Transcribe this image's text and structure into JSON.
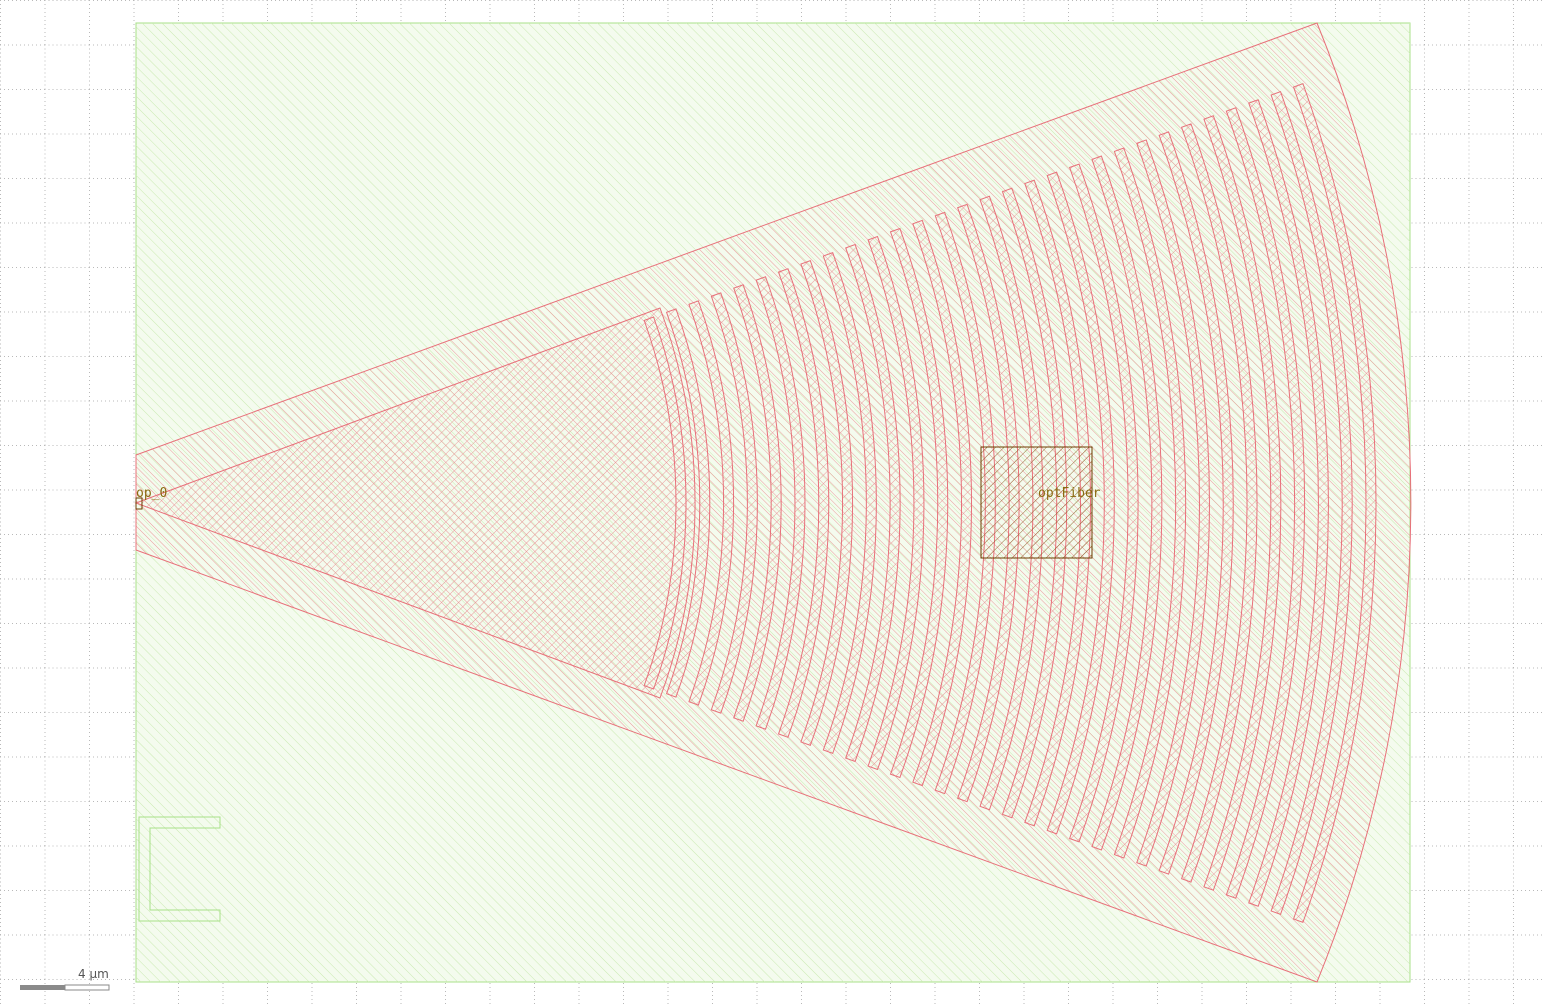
{
  "canvas": {
    "background": "#ffffff",
    "grid_color": "#b9b9b9"
  },
  "layers": {
    "cladding": {
      "stroke": "#a8e088",
      "hatch": "#c9eab0",
      "fill": "#f4fbee"
    },
    "core": {
      "stroke": "#e8707a",
      "hatch": "#ea8f93"
    },
    "label": {
      "stroke": "#6b3c00",
      "hatch": "#7a4a10",
      "text_color": "#8a6a10"
    }
  },
  "labels": {
    "port": "op_0",
    "fiber": "optFiber"
  },
  "grating": {
    "teeth_count": 30
  },
  "scale_bar": {
    "text": "4 µm"
  }
}
